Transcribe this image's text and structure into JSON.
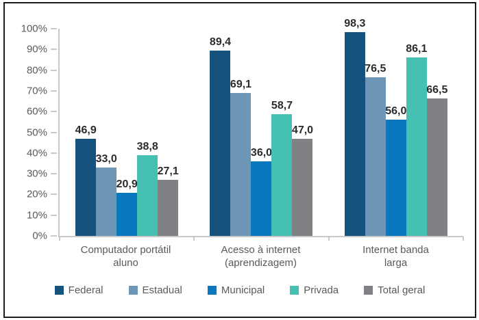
{
  "frame": {
    "border_color": "#1a1a1a",
    "background": "#ffffff"
  },
  "chart_data": {
    "type": "bar",
    "title": "",
    "xlabel": "",
    "ylabel": "",
    "ylim": [
      0,
      100
    ],
    "grid": false,
    "legend_position": "bottom",
    "axis_color": "#c9c9c9",
    "text_color": "#595959",
    "value_label_color": "#2b2b2b",
    "yticks": [
      "100%",
      "90%",
      "80%",
      "70%",
      "60%",
      "50%",
      "40%",
      "30%",
      "20%",
      "10%",
      "0%"
    ],
    "categories": [
      {
        "line1": "Computador portátil",
        "line2": "aluno"
      },
      {
        "line1": "Acesso à internet",
        "line2": "(aprendizagem)"
      },
      {
        "line1": "Internet banda",
        "line2": "larga"
      }
    ],
    "series": [
      {
        "name": "Federal",
        "color": "#15527e",
        "values": [
          46.9,
          89.4,
          98.3
        ],
        "labels": [
          "46,9",
          "89,4",
          "98,3"
        ]
      },
      {
        "name": "Estadual",
        "color": "#6d96b6",
        "values": [
          33.0,
          69.1,
          76.5
        ],
        "labels": [
          "33,0",
          "69,1",
          "76,5"
        ]
      },
      {
        "name": "Municipal",
        "color": "#0a78bf",
        "values": [
          20.9,
          36.0,
          56.0
        ],
        "labels": [
          "20,9",
          "36,0",
          "56,0"
        ]
      },
      {
        "name": "Privada",
        "color": "#46c0b3",
        "values": [
          38.8,
          58.7,
          86.1
        ],
        "labels": [
          "38,8",
          "58,7",
          "86,1"
        ]
      },
      {
        "name": "Total geral",
        "color": "#7f8184",
        "values": [
          27.1,
          47.0,
          66.5
        ],
        "labels": [
          "27,1",
          "47,0",
          "66,5"
        ]
      }
    ]
  }
}
